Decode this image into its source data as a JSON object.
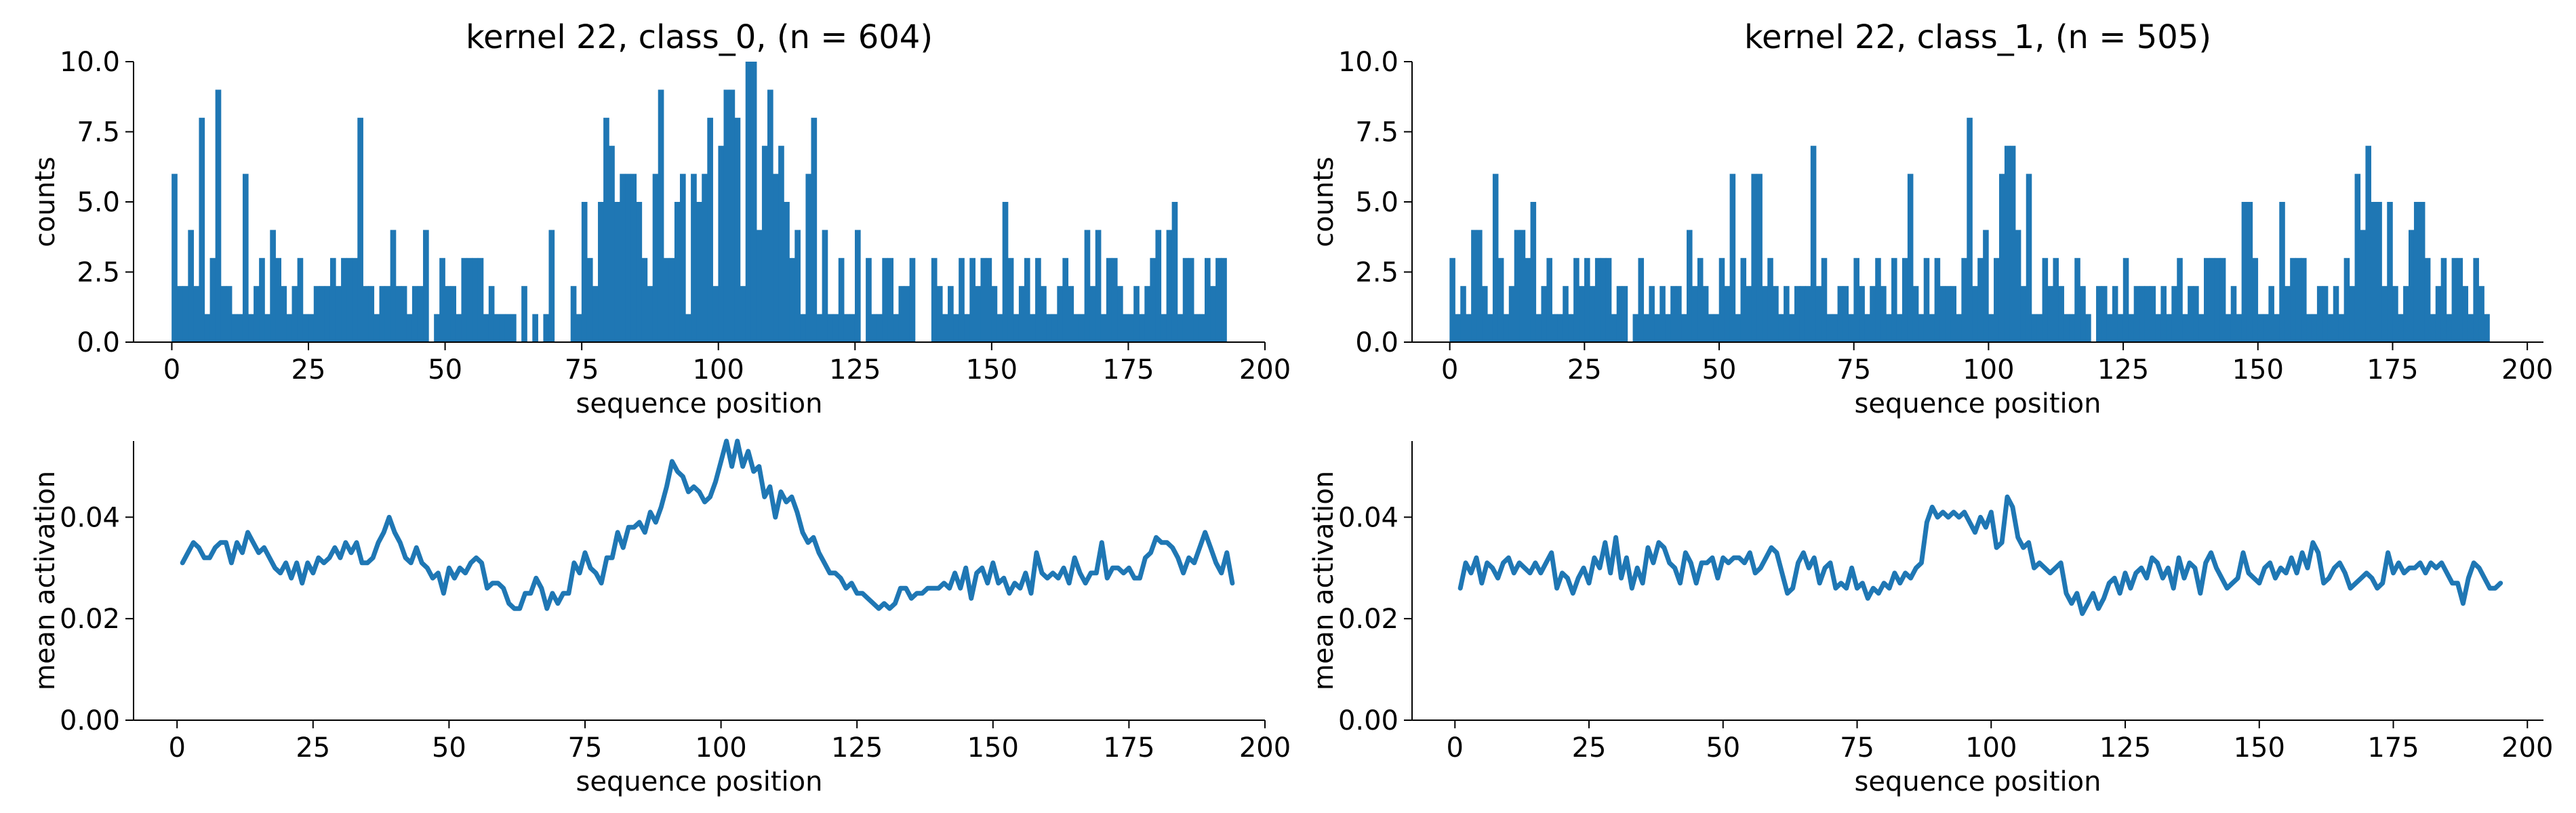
{
  "chart_data": [
    {
      "type": "bar",
      "title": "kernel 22, class_0, (n = 604)",
      "xlabel": "sequence position",
      "ylabel": "counts",
      "xlim": [
        -7,
        200
      ],
      "ylim": [
        0,
        10
      ],
      "xticks": [
        "0",
        "25",
        "50",
        "75",
        "100",
        "125",
        "150",
        "175",
        "200"
      ],
      "yticks": [
        "0.0",
        "2.5",
        "5.0",
        "7.5",
        "10.0"
      ],
      "color": "#1f77b4",
      "x_start": 0,
      "values": [
        6,
        2,
        2,
        4,
        2,
        8,
        1,
        3,
        9,
        2,
        2,
        1,
        1,
        6,
        1,
        2,
        3,
        1,
        4,
        3,
        2,
        1,
        2,
        3,
        1,
        1,
        2,
        2,
        2,
        3,
        2,
        3,
        3,
        3,
        8,
        2,
        2,
        1,
        2,
        2,
        4,
        2,
        2,
        1,
        2,
        2,
        4,
        0,
        1,
        3,
        2,
        2,
        1,
        3,
        3,
        3,
        3,
        1,
        2,
        1,
        1,
        1,
        1,
        0,
        2,
        0,
        1,
        0,
        1,
        4,
        0,
        0,
        0,
        2,
        1,
        5,
        3,
        2,
        5,
        8,
        7,
        5,
        6,
        6,
        6,
        5,
        3,
        2,
        6,
        9,
        3,
        3,
        5,
        6,
        1,
        6,
        5,
        6,
        8,
        2,
        7,
        9,
        9,
        8,
        2,
        10,
        10,
        4,
        7,
        9,
        6,
        7,
        5,
        3,
        4,
        1,
        6,
        8,
        1,
        4,
        1,
        1,
        3,
        1,
        1,
        4,
        0,
        3,
        1,
        1,
        3,
        3,
        1,
        2,
        2,
        3,
        0,
        0,
        0,
        3,
        2,
        1,
        2,
        1,
        3,
        1,
        3,
        2,
        3,
        3,
        2,
        1,
        5,
        3,
        1,
        2,
        3,
        1,
        3,
        2,
        1,
        1,
        2,
        3,
        2,
        1,
        1,
        4,
        2,
        4,
        1,
        3,
        3,
        2,
        1,
        1,
        2,
        1,
        2,
        3,
        4,
        1,
        4,
        5,
        1,
        3,
        3,
        1,
        1,
        3,
        2,
        3,
        3
      ],
      "grid": false
    },
    {
      "type": "bar",
      "title": "kernel 22, class_1, (n = 505)",
      "xlabel": "sequence position",
      "ylabel": "counts",
      "xlim": [
        -7,
        203
      ],
      "ylim": [
        0,
        10
      ],
      "xticks": [
        "0",
        "25",
        "50",
        "75",
        "100",
        "125",
        "150",
        "175",
        "200"
      ],
      "yticks": [
        "0.0",
        "2.5",
        "5.0",
        "7.5",
        "10.0"
      ],
      "color": "#1f77b4",
      "x_start": 0,
      "values": [
        3,
        1,
        2,
        1,
        4,
        4,
        2,
        1,
        6,
        3,
        1,
        2,
        4,
        4,
        3,
        5,
        1,
        2,
        3,
        1,
        1,
        2,
        1,
        3,
        2,
        3,
        2,
        3,
        3,
        3,
        1,
        2,
        2,
        0,
        1,
        3,
        1,
        2,
        1,
        2,
        1,
        2,
        2,
        1,
        4,
        2,
        3,
        2,
        1,
        1,
        3,
        2,
        6,
        1,
        3,
        2,
        6,
        6,
        2,
        3,
        2,
        1,
        2,
        1,
        2,
        2,
        2,
        7,
        2,
        3,
        1,
        1,
        2,
        2,
        1,
        3,
        2,
        1,
        2,
        3,
        2,
        1,
        3,
        1,
        3,
        6,
        2,
        1,
        3,
        1,
        3,
        2,
        2,
        2,
        1,
        3,
        8,
        2,
        3,
        4,
        1,
        3,
        6,
        7,
        7,
        4,
        2,
        6,
        1,
        1,
        3,
        2,
        3,
        2,
        1,
        1,
        3,
        2,
        1,
        0,
        2,
        2,
        1,
        2,
        1,
        3,
        1,
        2,
        2,
        2,
        2,
        1,
        2,
        1,
        2,
        3,
        1,
        2,
        2,
        1,
        3,
        3,
        3,
        3,
        1,
        2,
        1,
        5,
        5,
        3,
        1,
        1,
        2,
        1,
        5,
        2,
        3,
        3,
        3,
        1,
        1,
        2,
        2,
        1,
        2,
        1,
        3,
        2,
        6,
        4,
        7,
        5,
        5,
        2,
        5,
        2,
        1,
        2,
        4,
        5,
        5,
        3,
        1,
        2,
        3,
        1,
        3,
        3,
        2,
        1,
        3,
        2,
        1
      ],
      "grid": false
    },
    {
      "type": "line",
      "xlabel": "sequence position",
      "ylabel": "mean activation",
      "xlim": [
        -8,
        200
      ],
      "ylim": [
        0,
        0.055
      ],
      "xticks": [
        "0",
        "25",
        "50",
        "75",
        "100",
        "125",
        "150",
        "175",
        "200"
      ],
      "yticks": [
        "0.00",
        "0.02",
        "0.04"
      ],
      "color": "#1f77b4",
      "x_start": 1,
      "values": [
        0.031,
        0.033,
        0.035,
        0.034,
        0.032,
        0.032,
        0.034,
        0.035,
        0.035,
        0.031,
        0.035,
        0.033,
        0.037,
        0.035,
        0.033,
        0.034,
        0.032,
        0.03,
        0.029,
        0.031,
        0.028,
        0.031,
        0.027,
        0.031,
        0.029,
        0.032,
        0.031,
        0.032,
        0.034,
        0.032,
        0.035,
        0.033,
        0.035,
        0.031,
        0.031,
        0.032,
        0.035,
        0.037,
        0.04,
        0.037,
        0.035,
        0.032,
        0.031,
        0.034,
        0.031,
        0.03,
        0.028,
        0.029,
        0.025,
        0.03,
        0.028,
        0.03,
        0.029,
        0.031,
        0.032,
        0.031,
        0.026,
        0.027,
        0.027,
        0.026,
        0.023,
        0.022,
        0.022,
        0.025,
        0.025,
        0.028,
        0.026,
        0.022,
        0.025,
        0.023,
        0.025,
        0.025,
        0.031,
        0.029,
        0.033,
        0.03,
        0.029,
        0.027,
        0.032,
        0.032,
        0.037,
        0.034,
        0.038,
        0.038,
        0.039,
        0.037,
        0.041,
        0.039,
        0.042,
        0.046,
        0.051,
        0.049,
        0.048,
        0.045,
        0.046,
        0.045,
        0.043,
        0.044,
        0.047,
        0.051,
        0.055,
        0.05,
        0.055,
        0.05,
        0.053,
        0.049,
        0.05,
        0.044,
        0.046,
        0.04,
        0.045,
        0.043,
        0.044,
        0.041,
        0.037,
        0.035,
        0.036,
        0.033,
        0.031,
        0.029,
        0.029,
        0.028,
        0.026,
        0.027,
        0.025,
        0.025,
        0.024,
        0.023,
        0.022,
        0.023,
        0.022,
        0.023,
        0.026,
        0.026,
        0.024,
        0.025,
        0.025,
        0.026,
        0.026,
        0.026,
        0.027,
        0.026,
        0.029,
        0.026,
        0.03,
        0.024,
        0.029,
        0.03,
        0.027,
        0.031,
        0.027,
        0.028,
        0.025,
        0.027,
        0.026,
        0.029,
        0.025,
        0.033,
        0.029,
        0.028,
        0.029,
        0.028,
        0.03,
        0.027,
        0.032,
        0.029,
        0.027,
        0.029,
        0.029,
        0.035,
        0.028,
        0.03,
        0.03,
        0.029,
        0.03,
        0.028,
        0.028,
        0.032,
        0.033,
        0.036,
        0.035,
        0.035,
        0.034,
        0.032,
        0.029,
        0.032,
        0.031,
        0.034,
        0.037,
        0.034,
        0.031,
        0.029,
        0.033,
        0.027
      ],
      "grid": false
    },
    {
      "type": "line",
      "xlabel": "sequence position",
      "ylabel": "mean activation",
      "xlim": [
        -8,
        203
      ],
      "ylim": [
        0,
        0.055
      ],
      "xticks": [
        "0",
        "25",
        "50",
        "75",
        "100",
        "125",
        "150",
        "175",
        "200"
      ],
      "yticks": [
        "0.00",
        "0.02",
        "0.04"
      ],
      "color": "#1f77b4",
      "x_start": 1,
      "values": [
        0.026,
        0.031,
        0.029,
        0.032,
        0.027,
        0.031,
        0.03,
        0.028,
        0.031,
        0.032,
        0.029,
        0.031,
        0.03,
        0.029,
        0.031,
        0.029,
        0.031,
        0.033,
        0.026,
        0.029,
        0.028,
        0.025,
        0.028,
        0.03,
        0.027,
        0.032,
        0.03,
        0.035,
        0.029,
        0.036,
        0.028,
        0.032,
        0.026,
        0.03,
        0.027,
        0.034,
        0.031,
        0.035,
        0.034,
        0.031,
        0.03,
        0.027,
        0.033,
        0.031,
        0.027,
        0.031,
        0.031,
        0.032,
        0.028,
        0.032,
        0.031,
        0.032,
        0.032,
        0.031,
        0.033,
        0.029,
        0.03,
        0.032,
        0.034,
        0.033,
        0.029,
        0.025,
        0.026,
        0.031,
        0.033,
        0.03,
        0.032,
        0.027,
        0.03,
        0.031,
        0.026,
        0.027,
        0.026,
        0.03,
        0.026,
        0.027,
        0.024,
        0.026,
        0.025,
        0.027,
        0.026,
        0.029,
        0.027,
        0.029,
        0.028,
        0.03,
        0.031,
        0.039,
        0.042,
        0.04,
        0.041,
        0.04,
        0.041,
        0.04,
        0.041,
        0.039,
        0.037,
        0.04,
        0.038,
        0.041,
        0.034,
        0.035,
        0.044,
        0.042,
        0.036,
        0.034,
        0.035,
        0.03,
        0.031,
        0.03,
        0.029,
        0.03,
        0.031,
        0.025,
        0.023,
        0.025,
        0.021,
        0.023,
        0.025,
        0.022,
        0.024,
        0.027,
        0.028,
        0.025,
        0.029,
        0.026,
        0.029,
        0.03,
        0.028,
        0.032,
        0.031,
        0.028,
        0.03,
        0.026,
        0.032,
        0.028,
        0.031,
        0.03,
        0.025,
        0.031,
        0.033,
        0.03,
        0.028,
        0.026,
        0.027,
        0.028,
        0.033,
        0.029,
        0.028,
        0.027,
        0.03,
        0.031,
        0.028,
        0.03,
        0.029,
        0.032,
        0.029,
        0.033,
        0.03,
        0.035,
        0.033,
        0.027,
        0.028,
        0.03,
        0.031,
        0.029,
        0.026,
        0.027,
        0.028,
        0.029,
        0.028,
        0.026,
        0.027,
        0.033,
        0.029,
        0.031,
        0.029,
        0.03,
        0.03,
        0.031,
        0.029,
        0.031,
        0.03,
        0.031,
        0.029,
        0.027,
        0.027,
        0.023,
        0.028,
        0.031,
        0.03,
        0.028,
        0.026,
        0.026,
        0.027
      ]
    }
  ]
}
